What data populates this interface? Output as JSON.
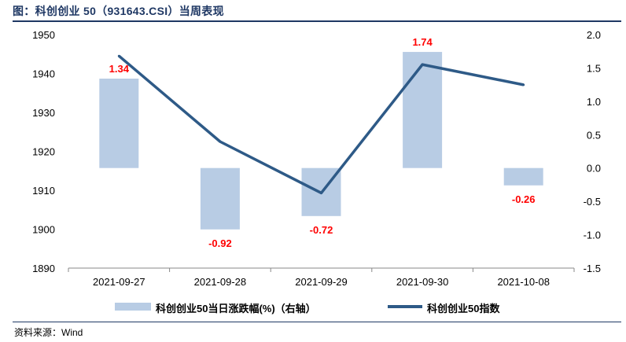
{
  "title": "图：科创创业 50（931643.CSI）当周表现",
  "source": "资料来源：Wind",
  "colors": {
    "bar": "#b8cce4",
    "line": "#2e5a87",
    "label": "#ff0000",
    "title": "#1f3864"
  },
  "chart_data": {
    "type": "bar+line",
    "categories": [
      "2021-09-27",
      "2021-09-28",
      "2021-09-29",
      "2021-09-30",
      "2021-10-08"
    ],
    "series": [
      {
        "name": "科创创业50当日涨跌幅(%)（右轴）",
        "type": "bar",
        "axis": "right",
        "values": [
          1.34,
          -0.92,
          -0.72,
          1.74,
          -0.26
        ],
        "labels": [
          "1.34",
          "-0.92",
          "-0.72",
          "1.74",
          "-0.26"
        ]
      },
      {
        "name": "科创创业50指数",
        "type": "line",
        "axis": "left",
        "values": [
          1944.5,
          1922.5,
          1909.3,
          1942.3,
          1937.1
        ]
      }
    ],
    "left_axis": {
      "min": 1890,
      "max": 1950,
      "ticks": [
        "1890",
        "1900",
        "1910",
        "1920",
        "1930",
        "1940",
        "1950"
      ]
    },
    "right_axis": {
      "min": -1.5,
      "max": 2.0,
      "ticks": [
        "-1.5",
        "-1.0",
        "-0.5",
        "0.0",
        "0.5",
        "1.0",
        "1.5",
        "2.0"
      ]
    },
    "legend_position": "bottom"
  }
}
